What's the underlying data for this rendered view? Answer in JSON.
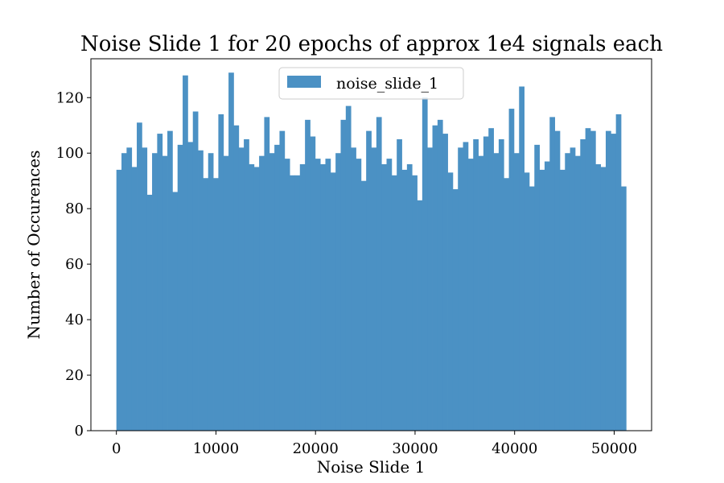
{
  "chart_data": {
    "type": "bar",
    "title": "Noise Slide 1 for 20 epochs of approx 1e4 signals each",
    "xlabel": "Noise Slide 1",
    "ylabel": "Number of Occurences",
    "xlim": [
      -2560,
      53760
    ],
    "ylim": [
      0,
      134
    ],
    "xticks": [
      0,
      10000,
      20000,
      30000,
      40000,
      50000
    ],
    "yticks": [
      0,
      20,
      40,
      60,
      80,
      100,
      120
    ],
    "bin_start": 0,
    "bin_width": 512,
    "series": [
      {
        "name": "noise_slide_1",
        "color": "#4b91c4",
        "values": [
          94,
          100,
          102,
          95,
          111,
          102,
          85,
          100,
          107,
          99,
          108,
          86,
          103,
          128,
          104,
          115,
          101,
          91,
          100,
          91,
          114,
          99,
          129,
          110,
          102,
          105,
          96,
          95,
          99,
          113,
          100,
          103,
          108,
          98,
          92,
          92,
          96,
          112,
          106,
          98,
          96,
          98,
          93,
          100,
          112,
          117,
          102,
          98,
          90,
          108,
          102,
          113,
          96,
          98,
          92,
          105,
          94,
          96,
          92,
          83,
          120,
          102,
          110,
          112,
          107,
          93,
          87,
          102,
          104,
          98,
          105,
          99,
          106,
          109,
          100,
          105,
          91,
          116,
          100,
          124,
          93,
          88,
          103,
          94,
          97,
          113,
          108,
          94,
          100,
          102,
          99,
          105,
          109,
          108,
          96,
          95,
          108,
          107,
          114,
          88
        ]
      }
    ],
    "legend": {
      "position": "upper-center",
      "entries": [
        "noise_slide_1"
      ]
    },
    "grid": false
  }
}
